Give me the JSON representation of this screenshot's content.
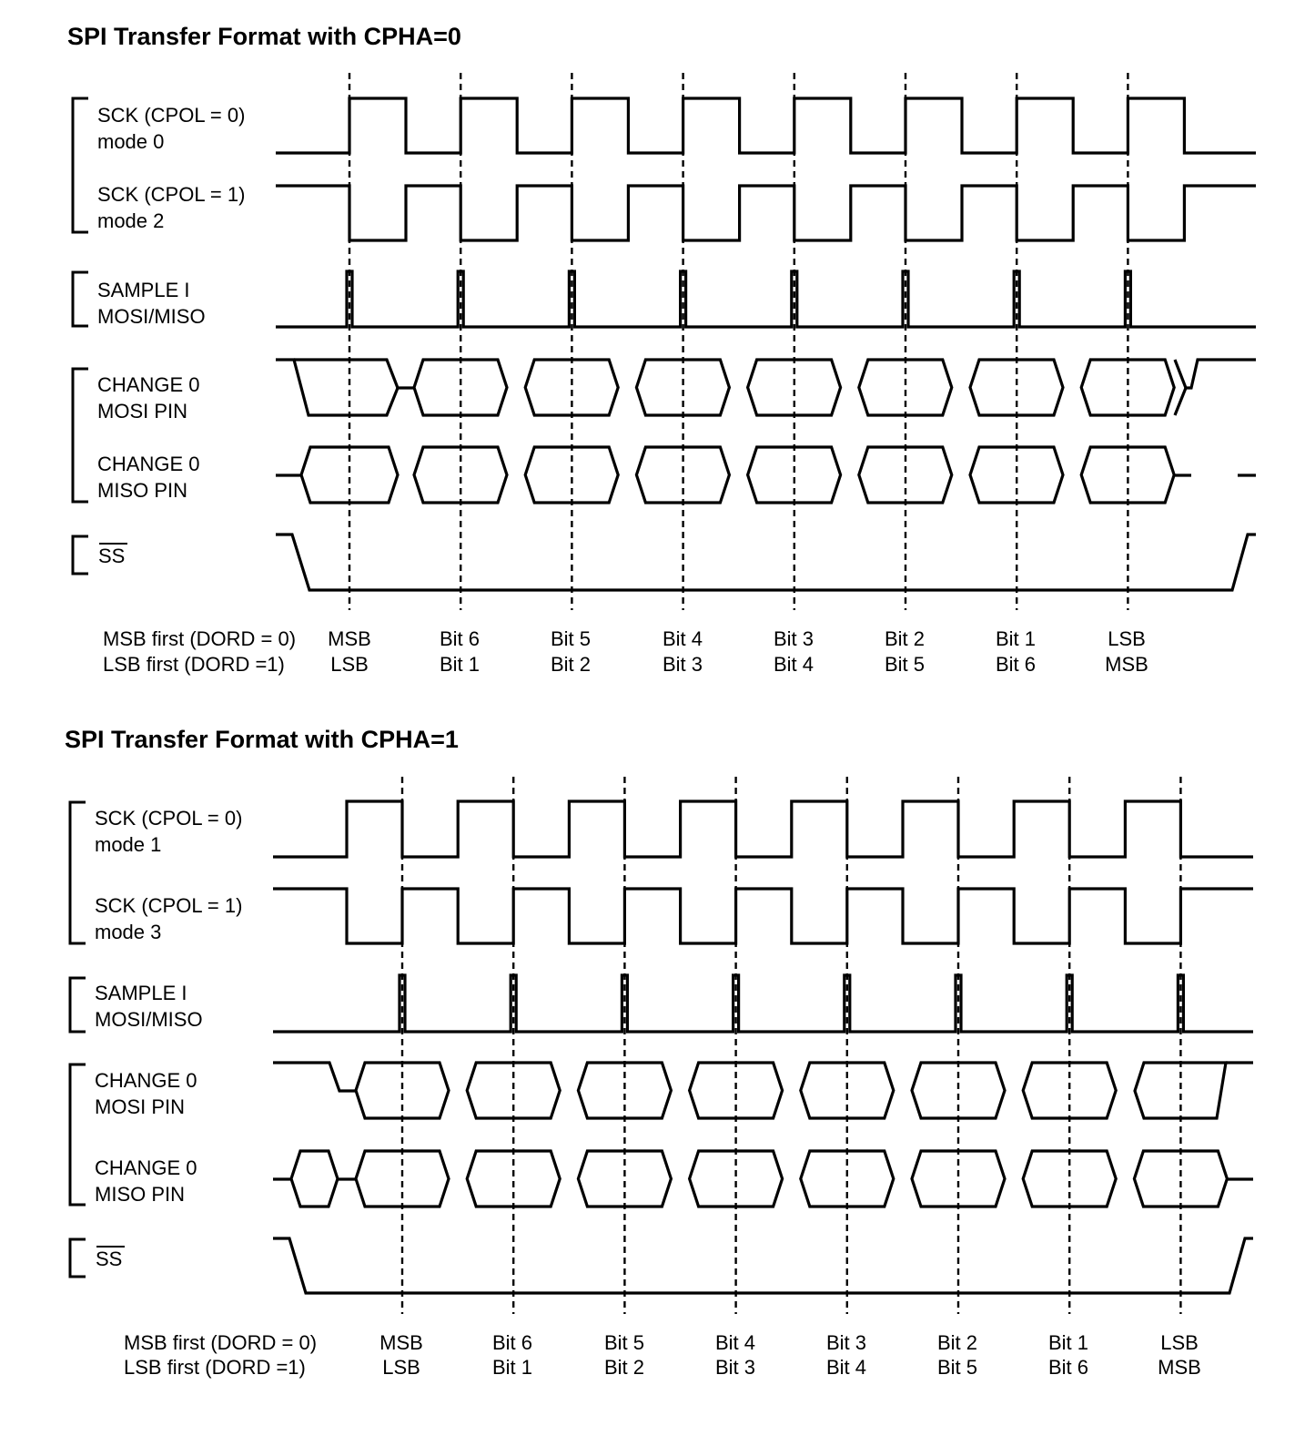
{
  "diagrams": [
    {
      "id": "cpha0",
      "title": "SPI Transfer Format with CPHA=0",
      "labels": {
        "sck0_line1": "SCK (CPOL = 0)",
        "sck0_line2": "mode 0",
        "sck1_line1": "SCK (CPOL = 1)",
        "sck1_line2": "mode 2",
        "sample_line1": "SAMPLE I",
        "sample_line2": "MOSI/MISO",
        "mosi_line1": "CHANGE 0",
        "mosi_line2": "MOSI PIN",
        "miso_line1": "CHANGE 0",
        "miso_line2": "MISO PIN",
        "ss": "SS",
        "msb_first": "MSB first (DORD = 0)",
        "lsb_first": "LSB first (DORD =1)"
      },
      "bits_msb": [
        "MSB",
        "Bit 6",
        "Bit 5",
        "Bit 4",
        "Bit 3",
        "Bit 2",
        "Bit 1",
        "LSB"
      ],
      "bits_lsb": [
        "LSB",
        "Bit 1",
        "Bit 2",
        "Bit 3",
        "Bit 4",
        "Bit 5",
        "Bit 6",
        "MSB"
      ]
    },
    {
      "id": "cpha1",
      "title": "SPI Transfer Format with CPHA=1",
      "labels": {
        "sck0_line1": "SCK (CPOL = 0)",
        "sck0_line2": "mode 1",
        "sck1_line1": "SCK (CPOL = 1)",
        "sck1_line2": "mode 3",
        "sample_line1": "SAMPLE I",
        "sample_line2": "MOSI/MISO",
        "mosi_line1": "CHANGE 0",
        "mosi_line2": "MOSI PIN",
        "miso_line1": "CHANGE 0",
        "miso_line2": "MISO PIN",
        "ss": "SS",
        "msb_first": "MSB first (DORD = 0)",
        "lsb_first": "LSB first (DORD =1)"
      },
      "bits_msb": [
        "MSB",
        "Bit 6",
        "Bit 5",
        "Bit 4",
        "Bit 3",
        "Bit 2",
        "Bit 1",
        "LSB"
      ],
      "bits_lsb": [
        "LSB",
        "Bit 1",
        "Bit 2",
        "Bit 3",
        "Bit 4",
        "Bit 5",
        "Bit 6",
        "MSB"
      ]
    }
  ]
}
